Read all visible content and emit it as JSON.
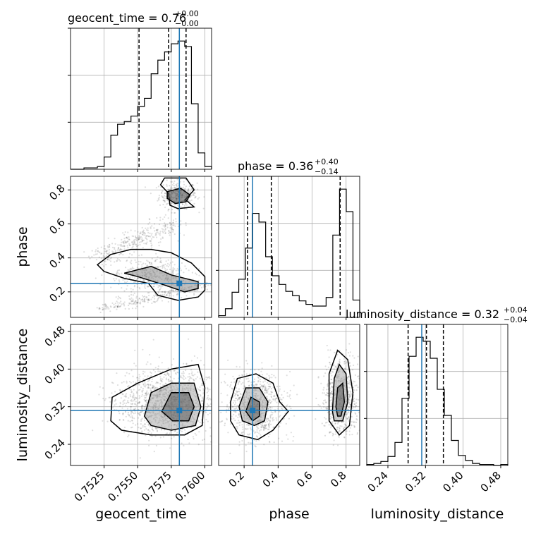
{
  "chart_data": {
    "type": "corner",
    "truth_color": "#1f77b4",
    "quantile_line_color": "#000000",
    "parameters": [
      "geocent_time",
      "phase",
      "luminosity_distance"
    ],
    "titles": [
      {
        "name": "geocent_time",
        "value": "0.76",
        "upper": "+0.00",
        "lower": "−0.00"
      },
      {
        "name": "phase",
        "value": "0.36",
        "upper": "+0.40",
        "lower": "−0.14"
      },
      {
        "name": "luminosity_distance",
        "value": "0.32",
        "upper": "+0.04",
        "lower": "−0.04"
      }
    ],
    "axes": {
      "geocent_time": {
        "range": [
          0.75,
          0.7605
        ],
        "ticks": [
          0.7525,
          0.755,
          0.7575,
          0.76
        ],
        "tick_labels": [
          "0.7525",
          "0.7550",
          "0.7575",
          "0.7600"
        ]
      },
      "phase": {
        "range": [
          0.05,
          0.88
        ],
        "ticks": [
          0.2,
          0.4,
          0.6,
          0.8
        ],
        "tick_labels": [
          "0.2",
          "0.4",
          "0.6",
          "0.8"
        ]
      },
      "luminosity_distance": {
        "range": [
          0.195,
          0.495
        ],
        "ticks": [
          0.24,
          0.32,
          0.4,
          0.48
        ],
        "tick_labels": [
          "0.24",
          "0.32",
          "0.40",
          "0.48"
        ]
      }
    },
    "truths": {
      "geocent_time": 0.7581,
      "phase": 0.25,
      "luminosity_distance": 0.312
    },
    "quantiles": {
      "geocent_time": [
        0.7551,
        0.7573,
        0.7586
      ],
      "phase": [
        0.22,
        0.36,
        0.765
      ],
      "luminosity_distance": [
        0.283,
        0.322,
        0.358
      ]
    },
    "histograms": {
      "geocent_time": [
        0,
        0,
        1,
        1,
        2,
        9,
        25,
        33,
        35,
        39,
        46,
        52,
        70,
        80,
        86,
        92,
        94,
        90,
        48,
        12,
        2
      ],
      "phase": [
        2,
        10,
        29,
        44,
        80,
        120,
        110,
        70,
        48,
        38,
        30,
        25,
        19,
        15,
        13,
        13,
        23,
        95,
        148,
        122,
        20
      ],
      "luminosity_distance": [
        1,
        2,
        4,
        9,
        23,
        67,
        109,
        128,
        124,
        107,
        76,
        50,
        25,
        10,
        5,
        2,
        1,
        1,
        0,
        1
      ]
    },
    "contours": {
      "geocent_time_vs_phase": {
        "outer": [
          [
            0.7585,
            0.74
          ],
          [
            0.7592,
            0.8
          ],
          [
            0.7586,
            0.87
          ],
          [
            0.757,
            0.87
          ],
          [
            0.7567,
            0.83
          ],
          [
            0.7573,
            0.78
          ],
          [
            0.7574,
            0.71
          ],
          [
            0.758,
            0.69
          ],
          [
            0.7592,
            0.7
          ],
          [
            0.7586,
            0.74
          ]
        ],
        "lower_outer": [
          [
            0.752,
            0.36
          ],
          [
            0.753,
            0.42
          ],
          [
            0.7545,
            0.45
          ],
          [
            0.756,
            0.45
          ],
          [
            0.7575,
            0.43
          ],
          [
            0.759,
            0.37
          ],
          [
            0.76,
            0.29
          ],
          [
            0.76,
            0.21
          ],
          [
            0.7595,
            0.17
          ],
          [
            0.758,
            0.15
          ],
          [
            0.7565,
            0.18
          ],
          [
            0.7558,
            0.25
          ],
          [
            0.754,
            0.28
          ],
          [
            0.7525,
            0.32
          ],
          [
            0.752,
            0.36
          ]
        ],
        "inner1": [
          [
            0.7572,
            0.79
          ],
          [
            0.7582,
            0.81
          ],
          [
            0.7589,
            0.77
          ],
          [
            0.7586,
            0.73
          ],
          [
            0.7578,
            0.72
          ],
          [
            0.7572,
            0.75
          ],
          [
            0.7572,
            0.79
          ]
        ],
        "inner2": [
          [
            0.754,
            0.31
          ],
          [
            0.756,
            0.35
          ],
          [
            0.7575,
            0.3
          ],
          [
            0.7595,
            0.26
          ],
          [
            0.7595,
            0.22
          ],
          [
            0.7585,
            0.2
          ],
          [
            0.757,
            0.24
          ],
          [
            0.755,
            0.29
          ],
          [
            0.754,
            0.31
          ]
        ]
      },
      "geocent_time_vs_luminosity_distance": {
        "outer": [
          [
            0.753,
            0.29
          ],
          [
            0.7531,
            0.34
          ],
          [
            0.755,
            0.37
          ],
          [
            0.7575,
            0.4
          ],
          [
            0.7595,
            0.41
          ],
          [
            0.76,
            0.36
          ],
          [
            0.7598,
            0.28
          ],
          [
            0.7585,
            0.26
          ],
          [
            0.756,
            0.26
          ],
          [
            0.7538,
            0.27
          ],
          [
            0.753,
            0.29
          ]
        ],
        "mid": [
          [
            0.7555,
            0.3
          ],
          [
            0.756,
            0.35
          ],
          [
            0.7575,
            0.37
          ],
          [
            0.7592,
            0.37
          ],
          [
            0.7597,
            0.32
          ],
          [
            0.7593,
            0.28
          ],
          [
            0.7575,
            0.27
          ],
          [
            0.756,
            0.28
          ],
          [
            0.7555,
            0.3
          ]
        ],
        "inner": [
          [
            0.7568,
            0.31
          ],
          [
            0.7575,
            0.35
          ],
          [
            0.7588,
            0.35
          ],
          [
            0.7592,
            0.32
          ],
          [
            0.7588,
            0.29
          ],
          [
            0.7576,
            0.29
          ],
          [
            0.7568,
            0.31
          ]
        ]
      },
      "phase_vs_luminosity_distance": {
        "left_outer": [
          [
            0.12,
            0.33
          ],
          [
            0.16,
            0.38
          ],
          [
            0.27,
            0.39
          ],
          [
            0.37,
            0.37
          ],
          [
            0.41,
            0.33
          ],
          [
            0.46,
            0.31
          ],
          [
            0.37,
            0.27
          ],
          [
            0.28,
            0.25
          ],
          [
            0.17,
            0.26
          ],
          [
            0.12,
            0.29
          ],
          [
            0.12,
            0.33
          ]
        ],
        "left_mid": [
          [
            0.17,
            0.32
          ],
          [
            0.21,
            0.36
          ],
          [
            0.29,
            0.36
          ],
          [
            0.34,
            0.33
          ],
          [
            0.32,
            0.29
          ],
          [
            0.26,
            0.28
          ],
          [
            0.19,
            0.29
          ],
          [
            0.17,
            0.32
          ]
        ],
        "left_inner": [
          [
            0.21,
            0.31
          ],
          [
            0.24,
            0.34
          ],
          [
            0.29,
            0.33
          ],
          [
            0.29,
            0.3
          ],
          [
            0.25,
            0.29
          ],
          [
            0.21,
            0.31
          ]
        ],
        "right_outer": [
          [
            0.7,
            0.29
          ],
          [
            0.7,
            0.39
          ],
          [
            0.75,
            0.44
          ],
          [
            0.81,
            0.42
          ],
          [
            0.84,
            0.35
          ],
          [
            0.82,
            0.28
          ],
          [
            0.76,
            0.26
          ],
          [
            0.7,
            0.29
          ]
        ],
        "right_mid": [
          [
            0.72,
            0.31
          ],
          [
            0.73,
            0.38
          ],
          [
            0.76,
            0.41
          ],
          [
            0.8,
            0.39
          ],
          [
            0.81,
            0.33
          ],
          [
            0.78,
            0.29
          ],
          [
            0.73,
            0.29
          ],
          [
            0.72,
            0.31
          ]
        ],
        "right_inner": [
          [
            0.74,
            0.32
          ],
          [
            0.75,
            0.36
          ],
          [
            0.78,
            0.37
          ],
          [
            0.79,
            0.33
          ],
          [
            0.77,
            0.3
          ],
          [
            0.75,
            0.3
          ],
          [
            0.74,
            0.32
          ]
        ]
      }
    }
  }
}
